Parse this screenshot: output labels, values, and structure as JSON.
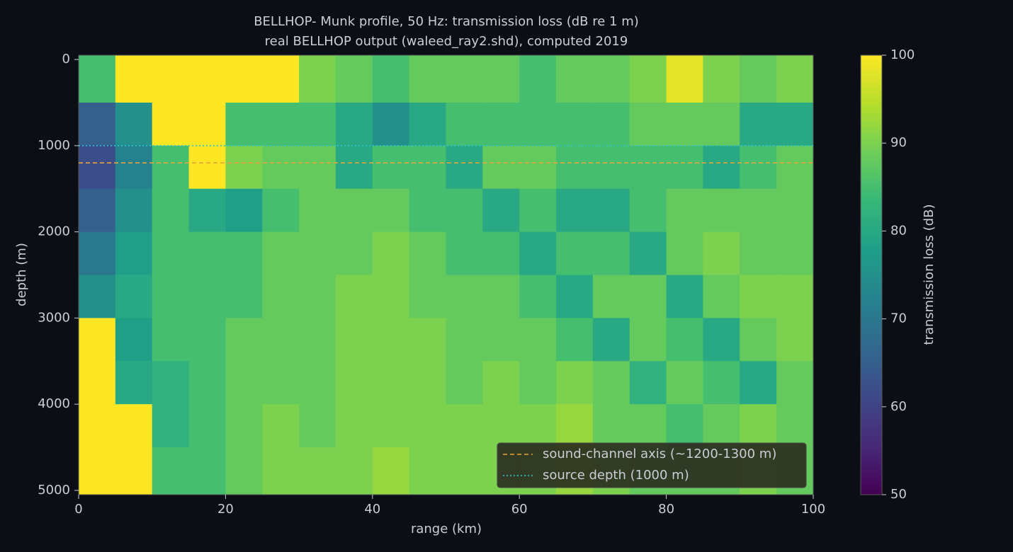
{
  "chart_data": {
    "type": "heatmap",
    "title": "BELLHOP- Munk profile, 50 Hz: transmission loss (dB re 1 m)",
    "subtitle": "real BELLHOP output (waleed_ray2.shd), computed 2019",
    "x_label": "range (km)",
    "y_label": "depth (m)",
    "colorbar_label": "transmission loss (dB)",
    "colormap": "viridis",
    "x": [
      2.5,
      7.5,
      12.5,
      17.5,
      22.5,
      27.5,
      32.5,
      37.5,
      42.5,
      47.5,
      52.5,
      57.5,
      62.5,
      67.5,
      72.5,
      77.5,
      82.5,
      87.5,
      92.5,
      97.5
    ],
    "y": [
      250,
      750,
      1250,
      1750,
      2250,
      2750,
      3250,
      3750,
      4250,
      4750
    ],
    "z": [
      [
        85,
        100,
        100,
        100,
        100,
        100,
        90,
        88,
        85,
        88,
        88,
        88,
        85,
        88,
        88,
        90,
        98,
        90,
        88,
        90
      ],
      [
        65,
        75,
        100,
        100,
        85,
        85,
        85,
        80,
        75,
        80,
        85,
        85,
        85,
        85,
        85,
        88,
        88,
        88,
        80,
        80
      ],
      [
        62,
        72,
        85,
        100,
        90,
        88,
        88,
        80,
        85,
        85,
        80,
        88,
        88,
        85,
        85,
        85,
        85,
        80,
        85,
        88
      ],
      [
        65,
        75,
        85,
        80,
        78,
        85,
        88,
        88,
        88,
        85,
        85,
        80,
        85,
        80,
        80,
        85,
        88,
        88,
        88,
        88
      ],
      [
        70,
        78,
        85,
        85,
        85,
        88,
        88,
        88,
        90,
        88,
        85,
        85,
        80,
        85,
        85,
        80,
        88,
        90,
        88,
        88
      ],
      [
        75,
        80,
        85,
        85,
        85,
        88,
        88,
        90,
        90,
        88,
        88,
        88,
        85,
        80,
        88,
        88,
        80,
        88,
        90,
        90
      ],
      [
        100,
        78,
        85,
        85,
        88,
        88,
        88,
        90,
        90,
        90,
        88,
        88,
        88,
        85,
        80,
        88,
        85,
        80,
        88,
        90
      ],
      [
        100,
        80,
        82,
        85,
        88,
        88,
        88,
        90,
        90,
        90,
        88,
        90,
        88,
        90,
        88,
        82,
        88,
        85,
        80,
        88
      ],
      [
        100,
        100,
        82,
        85,
        88,
        90,
        88,
        90,
        90,
        90,
        90,
        90,
        90,
        92,
        88,
        88,
        85,
        88,
        90,
        88
      ],
      [
        100,
        100,
        85,
        85,
        88,
        90,
        90,
        90,
        92,
        90,
        90,
        90,
        90,
        92,
        90,
        88,
        88,
        88,
        90,
        88
      ]
    ],
    "xlim": [
      0,
      100
    ],
    "xticks": [
      0,
      20,
      40,
      60,
      80,
      100
    ],
    "ylim": [
      -50,
      5050
    ],
    "y_inverted": true,
    "yticks": [
      0,
      1000,
      2000,
      3000,
      4000,
      5000
    ],
    "clim": [
      50,
      100
    ],
    "cticks": [
      50,
      60,
      70,
      80,
      90,
      100
    ],
    "hlines": [
      {
        "name": "sound-channel axis (~1200-1300 m)",
        "value": 1200,
        "color": "#e8a33a",
        "dash": "6 4"
      },
      {
        "name": "source depth (1000 m)",
        "value": 1000,
        "color": "#2ec4d6",
        "dash": "2 3"
      }
    ],
    "legend_position": "lower right"
  }
}
